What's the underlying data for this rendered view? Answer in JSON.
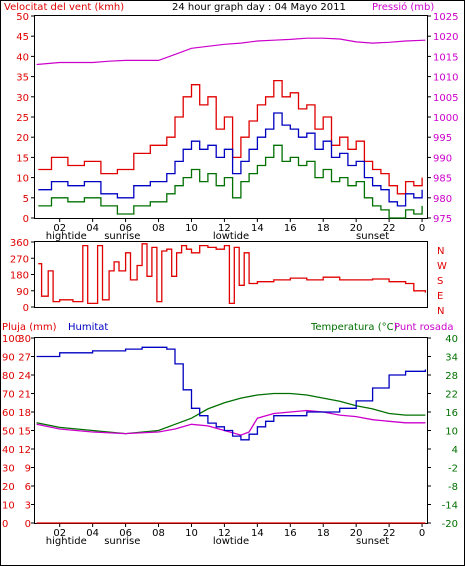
{
  "header": {
    "wind_title": "Velocitat del vent (kmh)",
    "graph_title": "24 hour graph day : 04 Mayo 2011",
    "pressure_title": "Pressió (mb)"
  },
  "bottom_header": {
    "rain_title": "Pluja (mm)",
    "humidity_title": "Humitat",
    "temp_title": "Temperatura (°C)",
    "dew_title": "Punt rosada"
  },
  "direction_labels": [
    "N",
    "W",
    "S",
    "E",
    "N"
  ],
  "x_ticks": [
    "02",
    "04",
    "06",
    "08",
    "10",
    "12",
    "14",
    "16",
    "18",
    "20",
    "22",
    "0"
  ],
  "events": [
    {
      "label": "hightide",
      "hour": 2.4
    },
    {
      "label": "sunrise",
      "hour": 5.8
    },
    {
      "label": "lowtide",
      "hour": 12.4
    },
    {
      "label": "sunset",
      "hour": 21.0
    }
  ],
  "colors": {
    "wind": "#e00000",
    "wind_avg": "#0000c0",
    "wind_min": "#007000",
    "pressure": "#cc00cc",
    "direction": "#e00000",
    "humidity": "#0000c0",
    "temperature": "#007000",
    "dew": "#cc00cc",
    "rain": "#e00000",
    "axis_left": "#e00000",
    "axis_right_top": "#cc00cc",
    "axis_right_bottom": "#007000"
  },
  "chart_data": [
    {
      "type": "line",
      "panel": "wind",
      "x_unit": "hour",
      "xlim": [
        0.5,
        24.3
      ],
      "ylim_left": [
        0,
        50
      ],
      "ylim_right": [
        975,
        1025
      ],
      "left_ticks": [
        "0",
        "5",
        "10",
        "15",
        "20",
        "25",
        "30",
        "35",
        "40",
        "45",
        "50"
      ],
      "right_ticks": [
        "975",
        "980",
        "985",
        "990",
        "995",
        "1000",
        "1005",
        "1010",
        "1015",
        "1020",
        "1025"
      ],
      "series": [
        {
          "key": "gust",
          "axis": "left",
          "x": [
            0.7,
            1.5,
            2.5,
            3.5,
            4.5,
            5.5,
            6.5,
            7.5,
            8.5,
            9.0,
            9.5,
            10.0,
            10.5,
            11.0,
            11.5,
            12.0,
            12.5,
            13.0,
            13.5,
            14.0,
            14.5,
            15.0,
            15.5,
            16.0,
            16.5,
            17.0,
            17.5,
            18.0,
            18.5,
            19.0,
            19.5,
            20.0,
            20.5,
            21.0,
            21.5,
            22.0,
            22.5,
            23.0,
            23.5,
            24.0
          ],
          "values": [
            12,
            15,
            13,
            14,
            11,
            12,
            16,
            18,
            20,
            25,
            30,
            33,
            28,
            30,
            22,
            25,
            15,
            20,
            24,
            28,
            30,
            34,
            30,
            31,
            27,
            28,
            22,
            25,
            18,
            20,
            17,
            19,
            14,
            12,
            11,
            8,
            6,
            9,
            8,
            10
          ]
        },
        {
          "key": "average",
          "axis": "left",
          "x": [
            0.7,
            1.5,
            2.5,
            3.5,
            4.5,
            5.5,
            6.5,
            7.5,
            8.5,
            9.0,
            9.5,
            10.0,
            10.5,
            11.0,
            11.5,
            12.0,
            12.5,
            13.0,
            13.5,
            14.0,
            14.5,
            15.0,
            15.5,
            16.0,
            16.5,
            17.0,
            17.5,
            18.0,
            18.5,
            19.0,
            19.5,
            20.0,
            20.5,
            21.0,
            21.5,
            22.0,
            22.5,
            23.0,
            23.5,
            24.0
          ],
          "values": [
            7,
            9,
            8,
            9,
            6,
            5,
            8,
            9,
            11,
            14,
            17,
            19,
            17,
            18,
            15,
            17,
            11,
            14,
            17,
            20,
            22,
            26,
            23,
            22,
            20,
            21,
            17,
            19,
            15,
            16,
            13,
            14,
            10,
            8,
            7,
            4,
            3,
            6,
            5,
            7
          ]
        },
        {
          "key": "minimum",
          "axis": "left",
          "x": [
            0.7,
            1.5,
            2.5,
            3.5,
            4.5,
            5.5,
            6.5,
            7.5,
            8.5,
            9.0,
            9.5,
            10.0,
            10.5,
            11.0,
            11.5,
            12.0,
            12.5,
            13.0,
            13.5,
            14.0,
            14.5,
            15.0,
            15.5,
            16.0,
            16.5,
            17.0,
            17.5,
            18.0,
            18.5,
            19.0,
            19.5,
            20.0,
            20.5,
            21.0,
            21.5,
            22.0,
            22.5,
            23.0,
            23.5,
            24.0
          ],
          "values": [
            3,
            5,
            4,
            5,
            3,
            1,
            3,
            4,
            6,
            8,
            10,
            12,
            9,
            11,
            8,
            10,
            5,
            9,
            11,
            13,
            15,
            18,
            14,
            15,
            13,
            14,
            10,
            12,
            9,
            10,
            8,
            9,
            5,
            3,
            2,
            0,
            0,
            2,
            1,
            3
          ]
        },
        {
          "key": "pressure",
          "axis": "right",
          "x": [
            0.6,
            2,
            4,
            5,
            6,
            7,
            8,
            9,
            10,
            11,
            12,
            13,
            14,
            15,
            16,
            17,
            18,
            19,
            20,
            21,
            22,
            23,
            24.2
          ],
          "values": [
            1013,
            1013.5,
            1013.5,
            1013.8,
            1014,
            1014,
            1014,
            1015.5,
            1017,
            1017.5,
            1018,
            1018.3,
            1018.8,
            1019,
            1019.2,
            1019.5,
            1019.5,
            1019.3,
            1018.6,
            1018.3,
            1018.5,
            1018.8,
            1019
          ]
        }
      ]
    },
    {
      "type": "line",
      "panel": "direction",
      "x_unit": "hour",
      "xlim": [
        0.5,
        24.3
      ],
      "ylim": [
        0,
        360
      ],
      "ticks": [
        "0",
        "90",
        "180",
        "270",
        "360"
      ],
      "series": [
        {
          "key": "direction",
          "axis": "left",
          "x": [
            0.7,
            0.9,
            1.3,
            1.6,
            2.0,
            2.8,
            3.4,
            3.7,
            4.3,
            4.6,
            5.0,
            5.3,
            5.6,
            6.0,
            6.3,
            6.7,
            7.0,
            7.3,
            7.6,
            7.9,
            8.2,
            8.5,
            8.8,
            9.1,
            9.4,
            9.7,
            10.0,
            10.5,
            11.0,
            11.5,
            12.0,
            12.3,
            12.6,
            12.9,
            13.2,
            13.5,
            14.0,
            15.0,
            16.0,
            17.0,
            18.0,
            19.0,
            20.0,
            21.0,
            22.0,
            23.0,
            23.5,
            24.2
          ],
          "values": [
            240,
            60,
            200,
            30,
            40,
            30,
            340,
            20,
            340,
            40,
            200,
            250,
            200,
            300,
            150,
            230,
            350,
            170,
            330,
            30,
            310,
            320,
            170,
            300,
            340,
            320,
            300,
            340,
            330,
            320,
            340,
            20,
            330,
            120,
            300,
            130,
            140,
            150,
            160,
            150,
            165,
            150,
            150,
            155,
            140,
            130,
            90,
            80
          ]
        }
      ]
    },
    {
      "type": "line",
      "panel": "humidity_temp",
      "x_unit": "hour",
      "xlim": [
        0.5,
        24.3
      ],
      "ylim_humidity": [
        0,
        100
      ],
      "humidity_ticks": [
        "0",
        "10",
        "20",
        "30",
        "40",
        "50",
        "60",
        "70",
        "80",
        "90",
        "100"
      ],
      "rain_ticks": [
        "0",
        "3",
        "6",
        "9",
        "12",
        "15",
        "18",
        "21",
        "24",
        "27",
        "30"
      ],
      "ylim_temp": [
        -20,
        40
      ],
      "temp_ticks": [
        "-20",
        "-14",
        "-8",
        "-2",
        "4",
        "10",
        "16",
        "22",
        "28",
        "34",
        "40"
      ],
      "series": [
        {
          "key": "humidity",
          "axis": "humidity",
          "x": [
            0.6,
            2,
            4,
            6,
            7,
            8,
            8.5,
            9,
            9.5,
            10,
            10.5,
            11,
            11.5,
            12,
            12.5,
            13,
            13.5,
            14,
            14.5,
            15,
            16,
            17,
            18,
            19,
            20,
            21,
            22,
            23,
            24.2
          ],
          "values": [
            90,
            92,
            93,
            94,
            95,
            95,
            94,
            86,
            72,
            62,
            58,
            54,
            52,
            50,
            47,
            45,
            48,
            52,
            55,
            58,
            58,
            60,
            60,
            62,
            66,
            73,
            80,
            82,
            83
          ]
        },
        {
          "key": "temperature",
          "axis": "temp",
          "x": [
            0.6,
            2,
            4,
            6,
            8,
            9,
            10,
            11,
            12,
            13,
            14,
            15,
            16,
            17,
            18,
            19,
            20,
            21,
            22,
            23,
            24.2
          ],
          "values": [
            12.5,
            11,
            10,
            9,
            10,
            12,
            14,
            17,
            19,
            20.5,
            21.5,
            22,
            22,
            21.5,
            20.5,
            19.5,
            18,
            17,
            15.5,
            15,
            15
          ]
        },
        {
          "key": "dew_point",
          "axis": "temp",
          "x": [
            0.6,
            2,
            4,
            6,
            8,
            9,
            10,
            11,
            12,
            13,
            13.5,
            14,
            15,
            16,
            17,
            18,
            19,
            20,
            21,
            22,
            23,
            24.2
          ],
          "values": [
            12,
            10.5,
            9.5,
            9,
            9.5,
            10.5,
            12,
            11.5,
            10,
            8.5,
            9.5,
            14,
            15.5,
            16,
            16.5,
            16,
            15,
            14.5,
            13.5,
            13,
            12.5,
            12.5
          ]
        },
        {
          "key": "rain",
          "axis": "rain",
          "x": [
            0.6,
            24.2
          ],
          "values": [
            0,
            0
          ]
        }
      ]
    }
  ]
}
